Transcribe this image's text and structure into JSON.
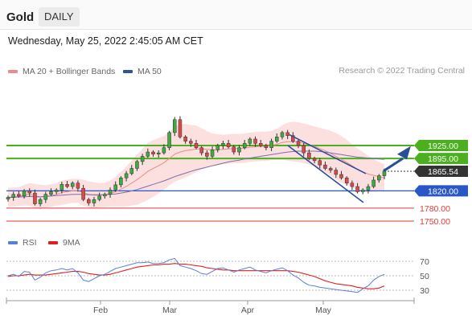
{
  "header": {
    "instrument": "Gold",
    "timeframe": "DAILY",
    "datetime": "Wednesday, May 25, 2022 2:45:05 AM CET"
  },
  "legend": {
    "items": [
      {
        "label": "MA 20 + Bollinger Bands",
        "color": "#f08a8a"
      },
      {
        "label": "MA 50",
        "color": "#2f5597"
      }
    ],
    "credit": "Research © 2022 Trading Central"
  },
  "rsi_legend": {
    "items": [
      {
        "label": "RSI",
        "color": "#5b7fd6"
      },
      {
        "label": "9MA",
        "color": "#e02020"
      }
    ]
  },
  "chart_data": [
    {
      "type": "candlestick",
      "title": "",
      "x_tick_labels": [
        "Feb",
        "Mar",
        "Apr",
        "May"
      ],
      "ylim": [
        1735,
        1970
      ],
      "current_price": "1865.54",
      "levels": [
        {
          "label": "1925.00",
          "value": 1925.0,
          "kind": "resistance",
          "color": "#4caf20"
        },
        {
          "label": "1895.00",
          "value": 1895.0,
          "kind": "resistance",
          "color": "#4caf20"
        },
        {
          "label": "1865.54",
          "value": 1865.54,
          "kind": "current",
          "color": "#333333"
        },
        {
          "label": "1820.00",
          "value": 1820.0,
          "kind": "pivot",
          "color": "#2a56c6"
        },
        {
          "label": "1780.00",
          "value": 1780.0,
          "kind": "support",
          "color": "#e53935"
        },
        {
          "label": "1750.00",
          "value": 1750.0,
          "kind": "support",
          "color": "#e53935"
        }
      ],
      "closes": [
        1805,
        1812,
        1808,
        1820,
        1815,
        1790,
        1800,
        1812,
        1818,
        1822,
        1835,
        1830,
        1838,
        1826,
        1800,
        1792,
        1800,
        1808,
        1812,
        1822,
        1834,
        1850,
        1860,
        1872,
        1888,
        1900,
        1910,
        1905,
        1908,
        1920,
        1955,
        1985,
        1945,
        1935,
        1930,
        1920,
        1908,
        1900,
        1915,
        1925,
        1930,
        1922,
        1910,
        1920,
        1930,
        1940,
        1930,
        1925,
        1920,
        1935,
        1945,
        1955,
        1948,
        1935,
        1925,
        1908,
        1895,
        1890,
        1880,
        1872,
        1868,
        1858,
        1850,
        1838,
        1830,
        1818,
        1822,
        1830,
        1845,
        1855,
        1865.54
      ],
      "ma20": [
        1805,
        1806,
        1807,
        1810,
        1812,
        1808,
        1806,
        1807,
        1809,
        1812,
        1816,
        1818,
        1820,
        1820,
        1816,
        1812,
        1810,
        1810,
        1811,
        1814,
        1818,
        1824,
        1830,
        1838,
        1846,
        1855,
        1865,
        1872,
        1878,
        1885,
        1895,
        1905,
        1910,
        1913,
        1915,
        1917,
        1917,
        1916,
        1915,
        1915,
        1916,
        1917,
        1918,
        1918,
        1919,
        1921,
        1922,
        1923,
        1923,
        1925,
        1928,
        1932,
        1934,
        1934,
        1933,
        1930,
        1927,
        1923,
        1918,
        1913,
        1907,
        1900,
        1893,
        1886,
        1878,
        1870,
        1864,
        1859,
        1856,
        1853,
        1850
      ],
      "ma50": [
        1805,
        1805,
        1806,
        1806,
        1807,
        1806,
        1806,
        1807,
        1808,
        1809,
        1810,
        1811,
        1812,
        1812,
        1812,
        1811,
        1811,
        1811,
        1811,
        1812,
        1813,
        1815,
        1817,
        1820,
        1823,
        1827,
        1831,
        1835,
        1839,
        1843,
        1848,
        1853,
        1857,
        1861,
        1865,
        1869,
        1872,
        1875,
        1878,
        1881,
        1884,
        1887,
        1889,
        1891,
        1894,
        1896,
        1898,
        1900,
        1902,
        1904,
        1906,
        1908,
        1910,
        1911,
        1912,
        1912,
        1912,
        1912,
        1911,
        1910,
        1908,
        1906,
        1904,
        1902,
        1900,
        1898,
        1897,
        1896,
        1895,
        1894,
        1893
      ],
      "bb_width": [
        22,
        22,
        22,
        24,
        26,
        28,
        28,
        26,
        26,
        26,
        28,
        28,
        28,
        28,
        30,
        30,
        30,
        28,
        28,
        30,
        34,
        40,
        46,
        52,
        58,
        62,
        66,
        66,
        64,
        62,
        62,
        64,
        64,
        62,
        58,
        54,
        48,
        42,
        38,
        36,
        34,
        34,
        34,
        34,
        34,
        34,
        34,
        34,
        34,
        34,
        36,
        40,
        44,
        46,
        46,
        46,
        46,
        46,
        48,
        50,
        52,
        54,
        54,
        52,
        50,
        48,
        46,
        42,
        38,
        34,
        32
      ]
    },
    {
      "type": "line",
      "title": "",
      "ylim": [
        20,
        80
      ],
      "y_ticks": [
        70,
        50,
        30
      ],
      "series": [
        {
          "name": "RSI",
          "values": [
            50,
            52,
            49,
            56,
            55,
            44,
            48,
            54,
            57,
            58,
            60,
            58,
            60,
            54,
            44,
            42,
            46,
            50,
            52,
            56,
            60,
            62,
            64,
            66,
            68,
            68,
            69,
            67,
            67,
            68,
            72,
            74,
            64,
            62,
            60,
            57,
            53,
            52,
            56,
            60,
            61,
            58,
            55,
            58,
            60,
            62,
            58,
            56,
            54,
            57,
            59,
            61,
            57,
            51,
            47,
            41,
            37,
            36,
            34,
            33,
            32,
            31,
            30,
            29,
            28,
            27,
            32,
            36,
            44,
            49,
            52
          ]
        },
        {
          "name": "9MA",
          "values": [
            49,
            50,
            50,
            51,
            52,
            51,
            51,
            51,
            52,
            53,
            54,
            55,
            56,
            56,
            55,
            53,
            52,
            51,
            51,
            52,
            54,
            56,
            58,
            60,
            62,
            63,
            64,
            65,
            65,
            66,
            66,
            67,
            66,
            66,
            65,
            64,
            63,
            61,
            60,
            59,
            58,
            58,
            57,
            57,
            57,
            57,
            57,
            57,
            57,
            57,
            57,
            57,
            57,
            56,
            55,
            53,
            51,
            49,
            46,
            43,
            41,
            39,
            38,
            37,
            36,
            34,
            33,
            32,
            32,
            33,
            36
          ]
        }
      ]
    }
  ]
}
